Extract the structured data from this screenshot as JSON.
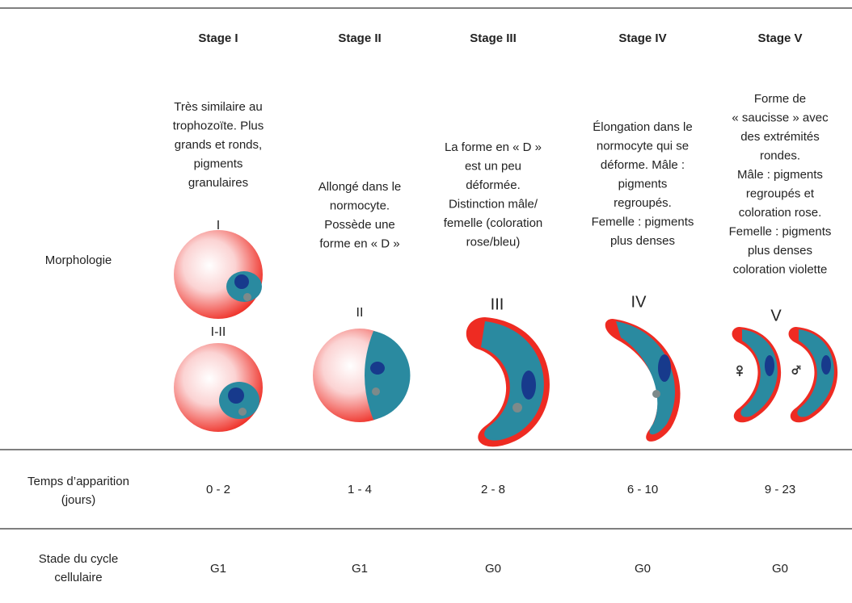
{
  "table": {
    "headers": [
      "Stage I",
      "Stage II",
      "Stage III",
      "Stage IV",
      "Stage V"
    ],
    "rows": [
      {
        "label": [
          "Morphologie"
        ],
        "cells": [
          {
            "lines": [
              "Très similaire au",
              "trophozoïte. Plus",
              "grands et ronds,",
              "pigments",
              "granulaires"
            ],
            "figure_labels": [
              "I",
              "I-II"
            ]
          },
          {
            "lines": [
              "Allongé dans le",
              "normocyte.",
              "Possède une",
              "forme en « D »"
            ],
            "figure_labels": [
              "II"
            ]
          },
          {
            "lines": [
              "La forme en « D »",
              "est un peu",
              "déformée.",
              "Distinction mâle/",
              "femelle (coloration",
              "rose/bleu)"
            ],
            "figure_labels": [
              "III"
            ]
          },
          {
            "lines": [
              "Élongation dans le",
              "normocyte qui se",
              "déforme. Mâle :",
              "pigments",
              "regroupés.",
              "Femelle : pigments",
              "plus denses"
            ],
            "figure_labels": [
              "IV"
            ]
          },
          {
            "lines": [
              "Forme de",
              "« saucisse » avec",
              "des extrémités",
              "rondes.",
              "Mâle : pigments",
              "regroupés et",
              "coloration rose.",
              "Femelle : pigments",
              "plus denses",
              "coloration violette"
            ],
            "figure_labels": [
              "V",
              "♀",
              "♂"
            ]
          }
        ]
      },
      {
        "label": [
          "Temps d’apparition",
          "(jours)"
        ],
        "cells": [
          "0 - 2",
          "1 - 4",
          "2 - 8",
          "6 - 10",
          "9 - 23"
        ]
      },
      {
        "label": [
          "Stade du cycle",
          "cellulaire"
        ],
        "cells": [
          "G1",
          "G1",
          "G0",
          "G0",
          "G0"
        ]
      }
    ]
  }
}
